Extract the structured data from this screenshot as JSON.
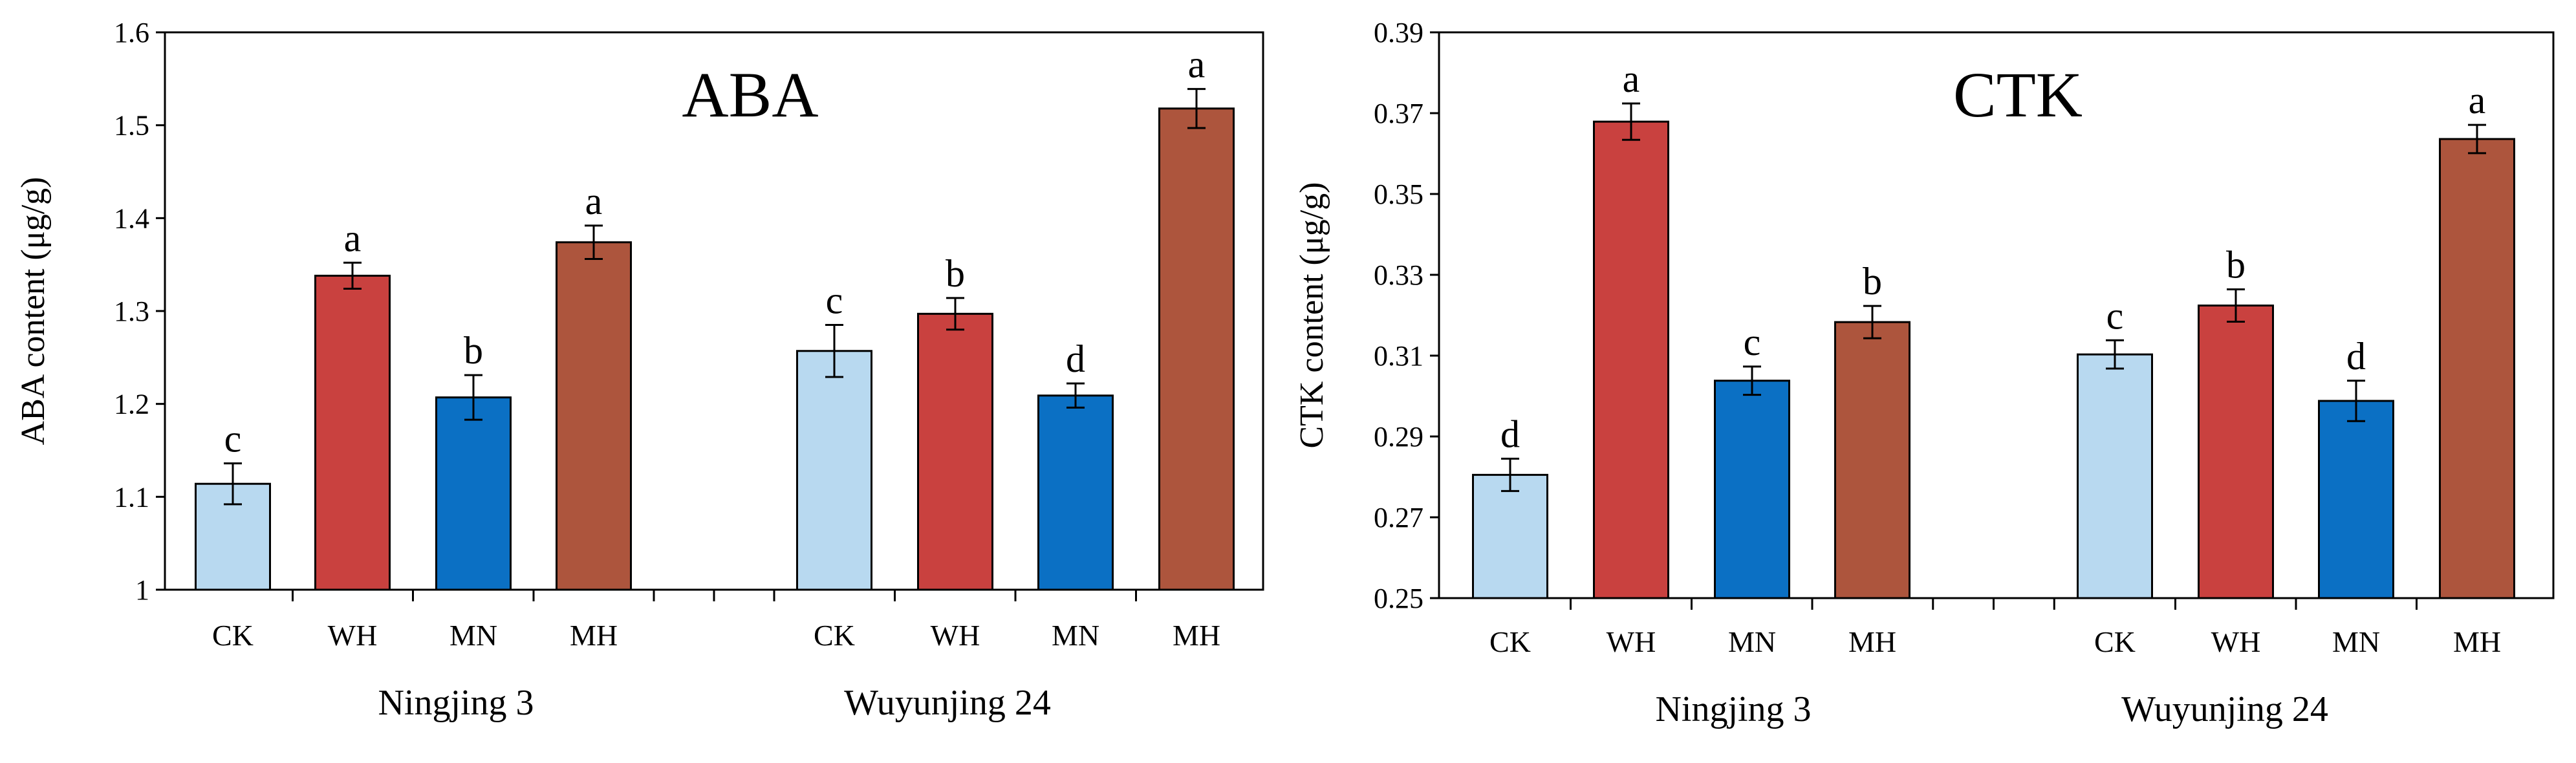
{
  "chart_data": [
    {
      "type": "bar",
      "title": "ABA",
      "xlabel": "",
      "ylabel": "ABA content (μg/g)",
      "ylim": [
        1,
        1.6
      ],
      "yticks": [
        1,
        1.1,
        1.2,
        1.3,
        1.4,
        1.5,
        1.6
      ],
      "ytick_labels": [
        "1",
        "1.1",
        "1.2",
        "1.3",
        "1.4",
        "1.5",
        "1.6"
      ],
      "groups": [
        {
          "name": "Ningjing 3",
          "categories": [
            "CK",
            "WH",
            "MN",
            "MH"
          ],
          "values": [
            1.114,
            1.338,
            1.207,
            1.374
          ],
          "errors": [
            0.022,
            0.014,
            0.024,
            0.018
          ],
          "significance": [
            "c",
            "a",
            "b",
            "a"
          ]
        },
        {
          "name": "Wuyunjing 24",
          "categories": [
            "CK",
            "WH",
            "MN",
            "MH"
          ],
          "values": [
            1.257,
            1.297,
            1.209,
            1.518
          ],
          "errors": [
            0.028,
            0.017,
            0.013,
            0.021
          ],
          "significance": [
            "c",
            "b",
            "d",
            "a"
          ]
        }
      ],
      "colors": [
        "#b8d9f0",
        "#c9413f",
        "#0b70c4",
        "#ad553d"
      ]
    },
    {
      "type": "bar",
      "title": "CTK",
      "xlabel": "",
      "ylabel": "CTK content (μg/g)",
      "ylim": [
        0.25,
        0.39
      ],
      "yticks": [
        0.25,
        0.27,
        0.29,
        0.31,
        0.33,
        0.35,
        0.37,
        0.39
      ],
      "ytick_labels": [
        "0.25",
        "0.27",
        "0.29",
        "0.31",
        "0.33",
        "0.35",
        "0.37",
        "0.39"
      ],
      "groups": [
        {
          "name": "Ningjing 3",
          "categories": [
            "CK",
            "WH",
            "MN",
            "MH"
          ],
          "values": [
            0.2805,
            0.3679,
            0.3038,
            0.3183
          ],
          "errors": [
            0.004,
            0.0045,
            0.0035,
            0.004
          ],
          "significance": [
            "d",
            "a",
            "c",
            "b"
          ]
        },
        {
          "name": "Wuyunjing 24",
          "categories": [
            "CK",
            "WH",
            "MN",
            "MH"
          ],
          "values": [
            0.3103,
            0.3224,
            0.2988,
            0.3636
          ],
          "errors": [
            0.0035,
            0.004,
            0.005,
            0.0035
          ],
          "significance": [
            "c",
            "b",
            "d",
            "a"
          ]
        }
      ],
      "colors": [
        "#b8d9f0",
        "#c9413f",
        "#0b70c4",
        "#ad553d"
      ]
    }
  ]
}
